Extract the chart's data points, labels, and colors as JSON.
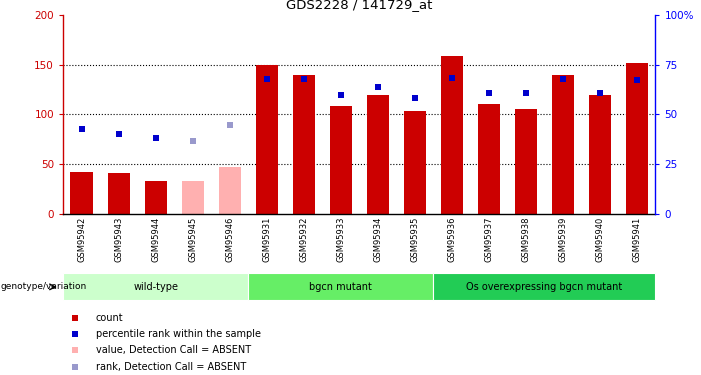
{
  "title": "GDS2228 / 141729_at",
  "samples": [
    "GSM95942",
    "GSM95943",
    "GSM95944",
    "GSM95945",
    "GSM95946",
    "GSM95931",
    "GSM95932",
    "GSM95933",
    "GSM95934",
    "GSM95935",
    "GSM95936",
    "GSM95937",
    "GSM95938",
    "GSM95939",
    "GSM95940",
    "GSM95941"
  ],
  "bar_values": [
    42,
    41,
    33,
    33,
    47,
    150,
    140,
    108,
    120,
    103,
    159,
    110,
    105,
    140,
    120,
    152
  ],
  "rank_values": [
    85,
    80,
    76,
    73,
    89,
    136,
    136,
    119,
    128,
    116,
    137,
    122,
    122,
    136,
    122,
    135
  ],
  "absent_bar": [
    false,
    false,
    false,
    true,
    true,
    false,
    false,
    false,
    false,
    false,
    false,
    false,
    false,
    false,
    false,
    false
  ],
  "absent_rank": [
    false,
    false,
    false,
    true,
    true,
    false,
    false,
    false,
    false,
    false,
    false,
    false,
    false,
    false,
    false,
    false
  ],
  "bar_color_present": "#cc0000",
  "bar_color_absent": "#ffb0b0",
  "rank_color_present": "#0000cc",
  "rank_color_absent": "#9999cc",
  "ylim_left": [
    0,
    200
  ],
  "ylim_right": [
    0,
    100
  ],
  "yticks_left": [
    0,
    50,
    100,
    150,
    200
  ],
  "yticks_right": [
    0,
    25,
    50,
    75,
    100
  ],
  "groups": [
    {
      "label": "wild-type",
      "start": 0,
      "end": 4,
      "color": "#ccffcc"
    },
    {
      "label": "bgcn mutant",
      "start": 5,
      "end": 9,
      "color": "#66ee66"
    },
    {
      "label": "Os overexpressing bgcn mutant",
      "start": 10,
      "end": 15,
      "color": "#22cc55"
    }
  ],
  "legend_items": [
    {
      "label": "count",
      "color": "#cc0000"
    },
    {
      "label": "percentile rank within the sample",
      "color": "#0000cc"
    },
    {
      "label": "value, Detection Call = ABSENT",
      "color": "#ffb0b0"
    },
    {
      "label": "rank, Detection Call = ABSENT",
      "color": "#9999cc"
    }
  ],
  "background_color": "#ffffff",
  "tick_area_color": "#cccccc",
  "group_area_color": "#ffffff"
}
